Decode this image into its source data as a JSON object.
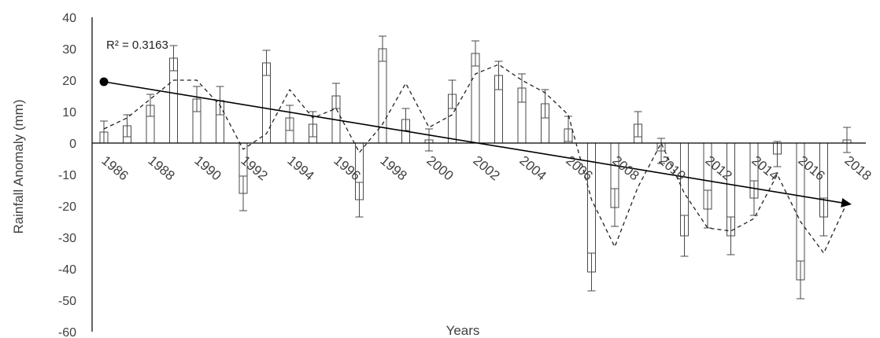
{
  "chart_data": {
    "type": "bar",
    "xlabel": "Years",
    "ylabel": "Rainfall Anomaly (mm)",
    "ylim": [
      -60,
      40
    ],
    "yticks": [
      40,
      30,
      20,
      10,
      0,
      -10,
      -20,
      -30,
      -40,
      -50,
      -60
    ],
    "x": [
      1986,
      1987,
      1988,
      1989,
      1990,
      1991,
      1992,
      1993,
      1994,
      1995,
      1996,
      1997,
      1998,
      1999,
      2000,
      2001,
      2002,
      2003,
      2004,
      2005,
      2006,
      2007,
      2008,
      2009,
      2010,
      2011,
      2012,
      2013,
      2014,
      2015,
      2016,
      2017,
      2018
    ],
    "xtick_labels": [
      "1986",
      "1988",
      "1990",
      "1992",
      "1994",
      "1996",
      "1998",
      "2000",
      "2002",
      "2004",
      "2006",
      "2008",
      "2010",
      "2012",
      "2014",
      "2016",
      "2018"
    ],
    "series": [
      {
        "values": [
          3.5,
          5.5,
          12,
          27,
          14,
          13.5,
          -16,
          25.5,
          8,
          6,
          15,
          -18,
          30,
          7.5,
          1,
          15.5,
          28.5,
          21.5,
          17.5,
          12.5,
          4.5,
          -41,
          -20.5,
          6,
          -2.5,
          -29.5,
          -21,
          -29.5,
          -17.5,
          -3.5,
          -43.5,
          -23.5,
          1
        ],
        "errors": [
          3.5,
          3.5,
          3.5,
          4,
          4,
          4.5,
          5.5,
          4,
          4,
          4,
          4,
          5.5,
          4,
          3.5,
          3.5,
          4.5,
          4,
          4.5,
          4.5,
          4.5,
          4,
          6,
          6,
          4,
          4,
          6.5,
          6,
          6,
          5.5,
          4,
          6,
          6,
          4
        ]
      }
    ],
    "smooth_line": [
      4.5,
      8,
      14,
      20,
      20,
      12,
      -2,
      3,
      17,
      8,
      11,
      -3,
      6,
      19,
      5,
      9,
      22,
      25,
      20,
      16,
      9,
      -18,
      -33,
      -14,
      0,
      -16,
      -27,
      -28,
      -24,
      -10,
      -25,
      -35,
      -19
    ],
    "trendline": {
      "start": 19.5,
      "end": -19.5
    },
    "annotation": "R² = 0.3163",
    "grid": false,
    "colors": {
      "bars": "#ffffff",
      "bar_edge": "#4a4a4a",
      "axis": "#000000",
      "trend": "#000000",
      "dashed": "#222222",
      "text": "#404040"
    }
  }
}
